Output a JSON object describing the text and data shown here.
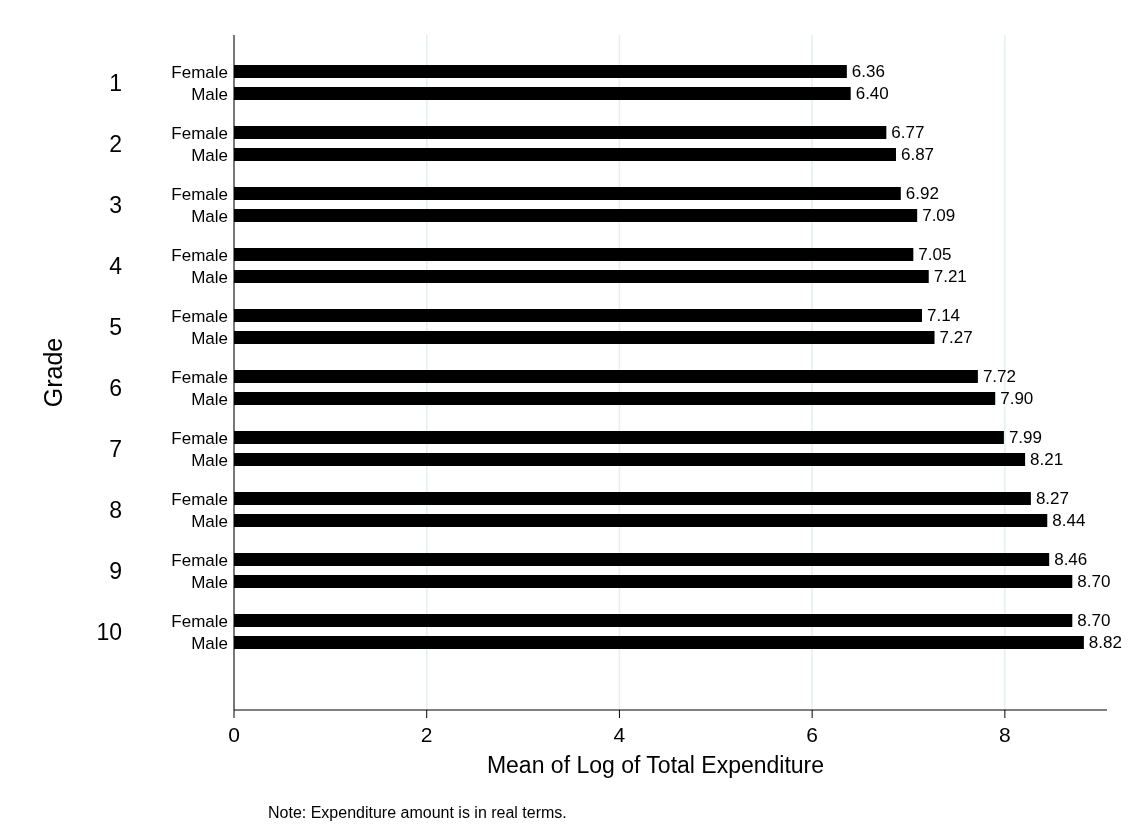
{
  "chart_data": {
    "type": "bar",
    "orientation": "horizontal",
    "xlabel": "Mean of Log of Total Expenditure",
    "ylabel": "Grade",
    "categories": [
      "1",
      "2",
      "3",
      "4",
      "5",
      "6",
      "7",
      "8",
      "9",
      "10"
    ],
    "series": [
      {
        "name": "Female",
        "color": "#000000",
        "values": [
          6.36,
          6.77,
          6.92,
          7.05,
          7.14,
          7.72,
          7.99,
          8.27,
          8.46,
          8.7
        ],
        "value_labels": [
          "6.36",
          "6.77",
          "6.92",
          "7.05",
          "7.14",
          "7.72",
          "7.99",
          "8.27",
          "8.46",
          "8.70"
        ]
      },
      {
        "name": "Male",
        "color": "#000000",
        "values": [
          6.4,
          6.87,
          7.09,
          7.21,
          7.27,
          7.9,
          8.21,
          8.44,
          8.7,
          8.82
        ],
        "value_labels": [
          "6.40",
          "6.87",
          "7.09",
          "7.21",
          "7.27",
          "7.90",
          "8.21",
          "8.44",
          "8.70",
          "8.82"
        ]
      }
    ],
    "xlim": [
      0,
      9.06
    ],
    "xticks": [
      0,
      2,
      4,
      6,
      8
    ],
    "grid": "x",
    "annotations": [
      "Note: Expenditure amount is in real terms."
    ]
  }
}
